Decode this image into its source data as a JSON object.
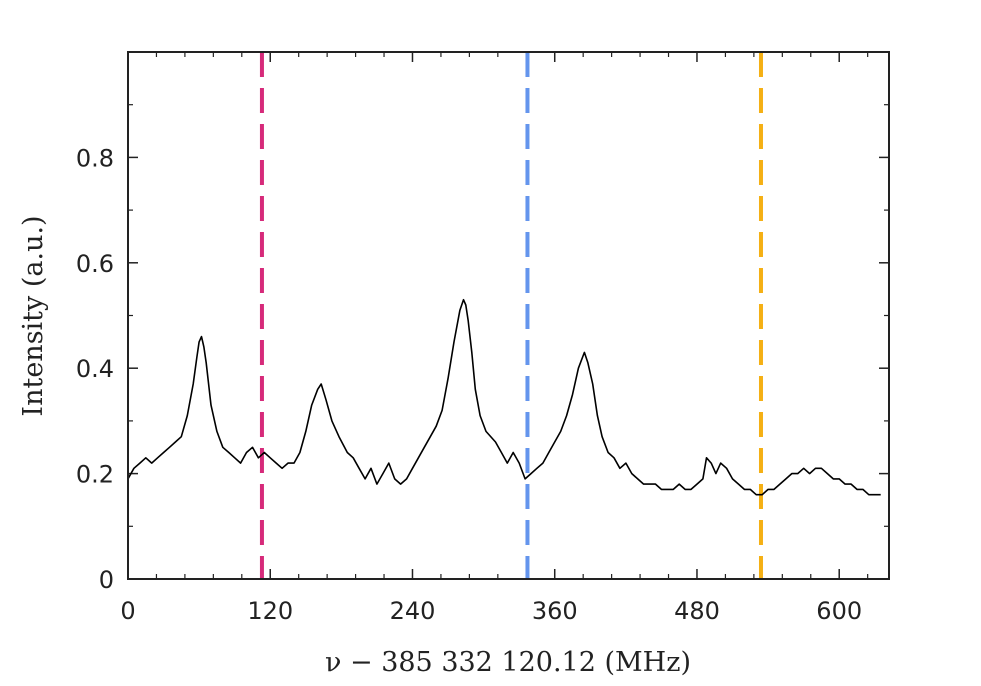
{
  "chart_data": {
    "type": "line",
    "title": "",
    "xlabel": "ν − 385 332 120.12 (MHz)",
    "ylabel": "Intensity (a.u.)",
    "xlim": [
      0,
      642
    ],
    "ylim": [
      0,
      1.0
    ],
    "xticks": [
      0,
      120,
      240,
      360,
      480,
      600
    ],
    "yticks": [
      0,
      0.2,
      0.4,
      0.6,
      0.8
    ],
    "xtick_labels": [
      "0",
      "120",
      "240",
      "360",
      "480",
      "600"
    ],
    "ytick_labels": [
      "0",
      "0.2",
      "0.4",
      "0.6",
      "0.8"
    ],
    "grid": false,
    "series": [
      {
        "color": "#000000",
        "x": [
          0,
          5,
          10,
          15,
          20,
          25,
          30,
          35,
          40,
          45,
          50,
          55,
          58,
          60,
          62,
          64,
          66,
          70,
          75,
          80,
          85,
          90,
          95,
          100,
          105,
          110,
          115,
          120,
          125,
          130,
          135,
          140,
          145,
          150,
          155,
          160,
          163,
          167,
          172,
          178,
          185,
          190,
          195,
          200,
          205,
          210,
          215,
          220,
          225,
          230,
          235,
          240,
          245,
          250,
          255,
          260,
          265,
          270,
          275,
          280,
          283,
          285,
          287,
          290,
          293,
          297,
          302,
          310,
          315,
          320,
          325,
          330,
          335,
          340,
          345,
          350,
          355,
          360,
          365,
          370,
          375,
          380,
          385,
          388,
          392,
          396,
          400,
          405,
          410,
          415,
          420,
          425,
          430,
          435,
          440,
          445,
          450,
          455,
          460,
          465,
          470,
          475,
          480,
          485,
          488,
          492,
          496,
          500,
          505,
          510,
          515,
          520,
          525,
          530,
          535,
          540,
          545,
          550,
          555,
          560,
          565,
          570,
          575,
          580,
          585,
          590,
          595,
          600,
          605,
          610,
          615,
          620,
          625,
          630,
          635
        ],
        "y": [
          0.19,
          0.21,
          0.22,
          0.23,
          0.22,
          0.23,
          0.24,
          0.25,
          0.26,
          0.27,
          0.31,
          0.37,
          0.42,
          0.45,
          0.46,
          0.44,
          0.41,
          0.33,
          0.28,
          0.25,
          0.24,
          0.23,
          0.22,
          0.24,
          0.25,
          0.23,
          0.24,
          0.23,
          0.22,
          0.21,
          0.22,
          0.22,
          0.24,
          0.28,
          0.33,
          0.36,
          0.37,
          0.34,
          0.3,
          0.27,
          0.24,
          0.23,
          0.21,
          0.19,
          0.21,
          0.18,
          0.2,
          0.22,
          0.19,
          0.18,
          0.19,
          0.21,
          0.23,
          0.25,
          0.27,
          0.29,
          0.32,
          0.38,
          0.45,
          0.51,
          0.53,
          0.52,
          0.49,
          0.43,
          0.36,
          0.31,
          0.28,
          0.26,
          0.24,
          0.22,
          0.24,
          0.22,
          0.19,
          0.2,
          0.21,
          0.22,
          0.24,
          0.26,
          0.28,
          0.31,
          0.35,
          0.4,
          0.43,
          0.41,
          0.37,
          0.31,
          0.27,
          0.24,
          0.23,
          0.21,
          0.22,
          0.2,
          0.19,
          0.18,
          0.18,
          0.18,
          0.17,
          0.17,
          0.17,
          0.18,
          0.17,
          0.17,
          0.18,
          0.19,
          0.23,
          0.22,
          0.2,
          0.22,
          0.21,
          0.19,
          0.18,
          0.17,
          0.17,
          0.16,
          0.16,
          0.17,
          0.17,
          0.18,
          0.19,
          0.2,
          0.2,
          0.21,
          0.2,
          0.21,
          0.21,
          0.2,
          0.19,
          0.19,
          0.18,
          0.18,
          0.17,
          0.17,
          0.16,
          0.16,
          0.16
        ]
      }
    ],
    "vlines": [
      {
        "x": 113,
        "color": "#d62a7a",
        "style": "dashed"
      },
      {
        "x": 337,
        "color": "#6495ed",
        "style": "dashed"
      },
      {
        "x": 534,
        "color": "#f5b014",
        "style": "dashed"
      }
    ]
  }
}
